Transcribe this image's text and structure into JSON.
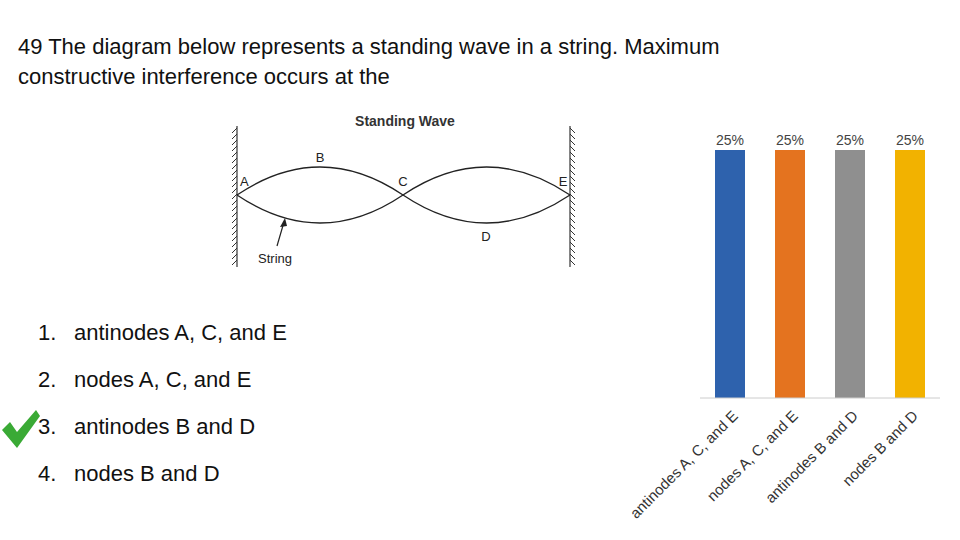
{
  "question": {
    "lines": [
      "49 The diagram below represents a standing wave in a string. Maximum",
      "constructive interference occurs at the"
    ]
  },
  "diagram": {
    "title": "Standing Wave",
    "points": {
      "A": "A",
      "B": "B",
      "C": "C",
      "D": "D",
      "E": "E"
    },
    "pointer_label": "String"
  },
  "answers": [
    {
      "number": 1,
      "text": "antinodes A, C, and E",
      "checked": false
    },
    {
      "number": 2,
      "text": "nodes A, C, and E",
      "checked": false
    },
    {
      "number": 3,
      "text": "antinodes B and D",
      "checked": true
    },
    {
      "number": 4,
      "text": "nodes B and D",
      "checked": false
    }
  ],
  "chart_data": {
    "type": "bar",
    "categories": [
      "antinodes A, C, and E",
      "nodes A, C, and E",
      "antinodes B and D",
      "nodes B and D"
    ],
    "values": [
      25,
      25,
      25,
      25
    ],
    "value_labels": [
      "25%",
      "25%",
      "25%",
      "25%"
    ],
    "colors": [
      "#2e62ad",
      "#e4731f",
      "#8f8f8f",
      "#f2b200"
    ],
    "ylim": [
      0,
      25
    ],
    "data_labels": true,
    "tick_labels": "x"
  }
}
